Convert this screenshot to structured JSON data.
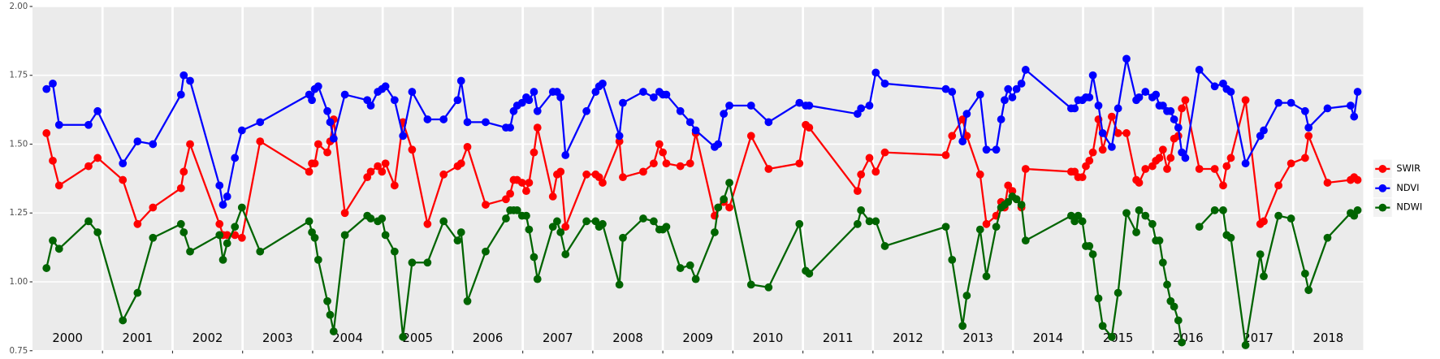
{
  "chart_data": {
    "type": "line",
    "x": [
      2000.2,
      2000.29,
      2000.38,
      2000.8,
      2000.93,
      2001.29,
      2001.5,
      2001.72,
      2002.12,
      2002.16,
      2002.25,
      2002.67,
      2002.72,
      2002.78,
      2002.89,
      2002.99,
      2003.25,
      2003.95,
      2003.99,
      2004.03,
      2004.08,
      2004.21,
      2004.25,
      2004.3,
      2004.46,
      2004.78,
      2004.83,
      2004.93,
      2004.99,
      2005.04,
      2005.17,
      2005.29,
      2005.42,
      2005.64,
      2005.87,
      2006.07,
      2006.12,
      2006.21,
      2006.47,
      2006.76,
      2006.82,
      2006.87,
      2006.92,
      2006.99,
      2007.05,
      2007.09,
      2007.16,
      2007.21,
      2007.43,
      2007.49,
      2007.54,
      2007.61,
      2007.91,
      2008.04,
      2008.09,
      2008.14,
      2008.38,
      2008.43,
      2008.72,
      2008.87,
      2008.95,
      2009.0,
      2009.05,
      2009.25,
      2009.39,
      2009.47,
      2009.74,
      2009.79,
      2009.87,
      2009.95,
      2010.26,
      2010.51,
      2010.95,
      2011.04,
      2011.09,
      2011.78,
      2011.83,
      2011.95,
      2012.04,
      2012.17,
      2013.04,
      2013.13,
      2013.28,
      2013.34,
      2013.53,
      2013.62,
      2013.76,
      2013.83,
      2013.88,
      2013.93,
      2013.99,
      2014.05,
      2014.12,
      2014.18,
      2014.83,
      2014.88,
      2014.93,
      2014.99,
      2015.04,
      2015.09,
      2015.14,
      2015.22,
      2015.28,
      2015.41,
      2015.5,
      2015.62,
      2015.76,
      2015.8,
      2015.89,
      2015.99,
      2016.04,
      2016.09,
      2016.14,
      2016.2,
      2016.25,
      2016.3,
      2016.36,
      2016.41,
      2016.46,
      2016.66,
      2016.88,
      2017.0,
      2017.05,
      2017.11,
      2017.32,
      2017.53,
      2017.58,
      2017.79,
      2017.97,
      2018.17,
      2018.22,
      2018.49,
      2018.82,
      2018.87,
      2018.92
    ],
    "series": [
      {
        "name": "SWIR",
        "color": "#ff0000",
        "values": [
          1.54,
          1.44,
          1.35,
          1.42,
          1.45,
          1.37,
          1.21,
          1.27,
          1.34,
          1.4,
          1.5,
          1.21,
          1.17,
          1.17,
          1.17,
          1.16,
          1.51,
          1.4,
          1.43,
          1.43,
          1.5,
          1.47,
          1.51,
          1.59,
          1.25,
          1.38,
          1.4,
          1.42,
          1.4,
          1.43,
          1.35,
          1.58,
          1.48,
          1.21,
          1.39,
          1.42,
          1.43,
          1.49,
          1.28,
          1.3,
          1.32,
          1.37,
          1.37,
          1.36,
          1.33,
          1.36,
          1.47,
          1.56,
          1.31,
          1.39,
          1.4,
          1.2,
          1.39,
          1.39,
          1.38,
          1.36,
          1.51,
          1.38,
          1.4,
          1.43,
          1.5,
          1.47,
          1.43,
          1.42,
          1.43,
          1.54,
          1.24,
          1.27,
          1.29,
          1.27,
          1.53,
          1.41,
          1.43,
          1.57,
          1.56,
          1.33,
          1.39,
          1.45,
          1.4,
          1.47,
          1.46,
          1.53,
          1.59,
          1.53,
          1.39,
          1.21,
          1.24,
          1.29,
          1.27,
          1.35,
          1.33,
          1.3,
          1.27,
          1.41,
          1.4,
          1.4,
          1.38,
          1.38,
          1.42,
          1.44,
          1.47,
          1.59,
          1.48,
          1.6,
          1.54,
          1.54,
          1.37,
          1.36,
          1.41,
          1.42,
          1.44,
          1.45,
          1.48,
          1.41,
          1.45,
          1.52,
          1.53,
          1.63,
          1.66,
          1.41,
          1.41,
          1.35,
          1.42,
          1.45,
          1.66,
          1.21,
          1.22,
          1.35,
          1.43,
          1.45,
          1.53,
          1.36,
          1.37,
          1.38,
          1.37
        ]
      },
      {
        "name": "NDVI",
        "color": "#0000ff",
        "values": [
          1.7,
          1.72,
          1.57,
          1.57,
          1.62,
          1.43,
          1.51,
          1.5,
          1.68,
          1.75,
          1.73,
          1.35,
          1.28,
          1.31,
          1.45,
          1.55,
          1.58,
          1.68,
          1.66,
          1.7,
          1.71,
          1.62,
          1.58,
          1.52,
          1.68,
          1.66,
          1.64,
          1.69,
          1.7,
          1.71,
          1.66,
          1.53,
          1.69,
          1.59,
          1.59,
          1.66,
          1.73,
          1.58,
          1.58,
          1.56,
          1.56,
          1.62,
          1.64,
          1.65,
          1.67,
          1.66,
          1.69,
          1.62,
          1.69,
          1.69,
          1.67,
          1.46,
          1.62,
          1.69,
          1.71,
          1.72,
          1.53,
          1.65,
          1.69,
          1.67,
          1.69,
          1.68,
          1.68,
          1.62,
          1.58,
          1.55,
          1.49,
          1.5,
          1.61,
          1.64,
          1.64,
          1.58,
          1.65,
          1.64,
          1.64,
          1.61,
          1.63,
          1.64,
          1.76,
          1.72,
          1.7,
          1.69,
          1.51,
          1.61,
          1.68,
          1.48,
          1.48,
          1.59,
          1.66,
          1.7,
          1.67,
          1.7,
          1.72,
          1.77,
          1.63,
          1.63,
          1.66,
          1.66,
          1.67,
          1.67,
          1.75,
          1.64,
          1.54,
          1.49,
          1.63,
          1.81,
          1.66,
          1.67,
          1.69,
          1.67,
          1.68,
          1.64,
          1.64,
          1.62,
          1.62,
          1.59,
          1.56,
          1.47,
          1.45,
          1.77,
          1.71,
          1.72,
          1.7,
          1.69,
          1.43,
          1.53,
          1.55,
          1.65,
          1.65,
          1.62,
          1.56,
          1.63,
          1.64,
          1.6,
          1.69
        ]
      },
      {
        "name": "NDWI",
        "color": "#006400",
        "values": [
          1.05,
          1.15,
          1.12,
          1.22,
          1.18,
          0.86,
          0.96,
          1.16,
          1.21,
          1.18,
          1.11,
          1.17,
          1.08,
          1.14,
          1.2,
          1.27,
          1.11,
          1.22,
          1.18,
          1.16,
          1.08,
          0.93,
          0.88,
          0.82,
          1.17,
          1.24,
          1.23,
          1.22,
          1.23,
          1.17,
          1.11,
          0.8,
          1.07,
          1.07,
          1.22,
          1.15,
          1.18,
          0.93,
          1.11,
          1.23,
          1.26,
          1.26,
          1.26,
          1.24,
          1.24,
          1.19,
          1.09,
          1.01,
          1.2,
          1.22,
          1.18,
          1.1,
          1.22,
          1.22,
          1.2,
          1.21,
          0.99,
          1.16,
          1.23,
          1.22,
          1.19,
          1.19,
          1.2,
          1.05,
          1.06,
          1.01,
          1.18,
          1.27,
          1.3,
          1.36,
          0.99,
          0.98,
          1.21,
          1.04,
          1.03,
          1.21,
          1.26,
          1.22,
          1.22,
          1.13,
          1.2,
          1.08,
          0.84,
          0.95,
          1.19,
          1.02,
          1.2,
          1.27,
          1.28,
          1.29,
          1.31,
          1.3,
          1.28,
          1.15,
          1.24,
          1.22,
          1.24,
          1.22,
          1.13,
          1.13,
          1.1,
          0.94,
          0.84,
          0.8,
          0.96,
          1.25,
          1.18,
          1.26,
          1.24,
          1.21,
          1.15,
          1.15,
          1.07,
          0.99,
          0.93,
          0.91,
          0.86,
          0.78,
          null,
          1.2,
          1.26,
          1.26,
          1.17,
          1.16,
          0.77,
          1.1,
          1.02,
          1.24,
          1.23,
          1.03,
          0.97,
          1.16,
          1.25,
          1.24,
          1.26
        ]
      }
    ],
    "xlim": [
      2000,
      2019
    ],
    "xticks": [
      2001,
      2002,
      2003,
      2004,
      2005,
      2006,
      2007,
      2008,
      2009,
      2010,
      2011,
      2012,
      2013,
      2014,
      2015,
      2016,
      2017,
      2018
    ],
    "year_labels": [
      "2000",
      "2001",
      "2002",
      "2003",
      "2004",
      "2005",
      "2006",
      "2007",
      "2008",
      "2009",
      "2010",
      "2011",
      "2012",
      "2013",
      "2014",
      "2015",
      "2016",
      "2017",
      "2018"
    ],
    "ylim": [
      0.75,
      2.0
    ],
    "yticks": [
      0.75,
      {
        "value": 1.0,
        "label": "1.00"
      },
      1.25,
      {
        "value": 1.5,
        "label": "1.50"
      },
      1.75,
      {
        "value": 2.0,
        "label": "2.00"
      }
    ],
    "grid": true,
    "legend": "right",
    "markers": true
  }
}
